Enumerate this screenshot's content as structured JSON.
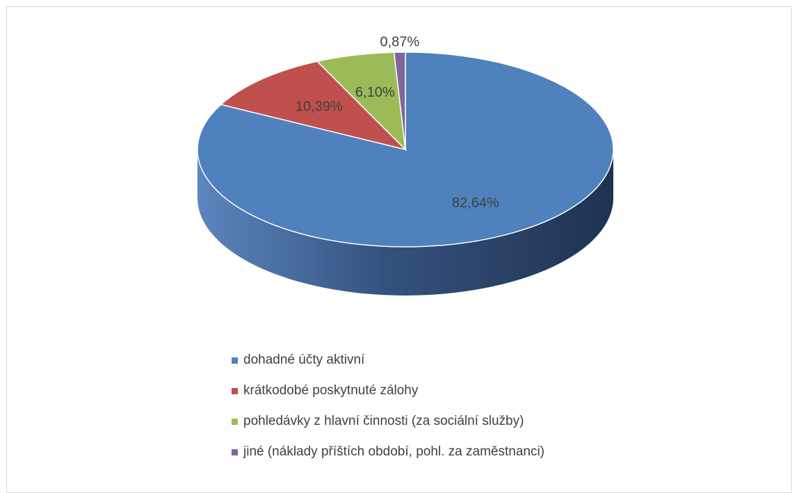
{
  "chart_data": {
    "type": "pie",
    "title": "",
    "legend_position": "bottom",
    "slices": [
      {
        "label": "dohadné účty aktivní",
        "value": 82.64,
        "display": "82,64%",
        "color": "#4F81BD",
        "side_dark": "#1F3350",
        "side_light": "#5C86BF"
      },
      {
        "label": "krátkodobé poskytnuté zálohy",
        "value": 10.39,
        "display": "10,39%",
        "color": "#C0504D",
        "side_dark": "#7A2F2D",
        "side_light": "#C0504D"
      },
      {
        "label": "pohledávky z hlavní činnosti (za sociální služby)",
        "value": 6.1,
        "display": "6,10%",
        "color": "#9BBB59",
        "side_dark": "#5E7535",
        "side_light": "#9BBB59"
      },
      {
        "label": "jiné (náklady příštích období, pohl. za zaměstnanci)",
        "value": 0.87,
        "display": "0,87%",
        "color": "#8064A2",
        "side_dark": "#4E3D63",
        "side_light": "#8064A2"
      }
    ]
  }
}
